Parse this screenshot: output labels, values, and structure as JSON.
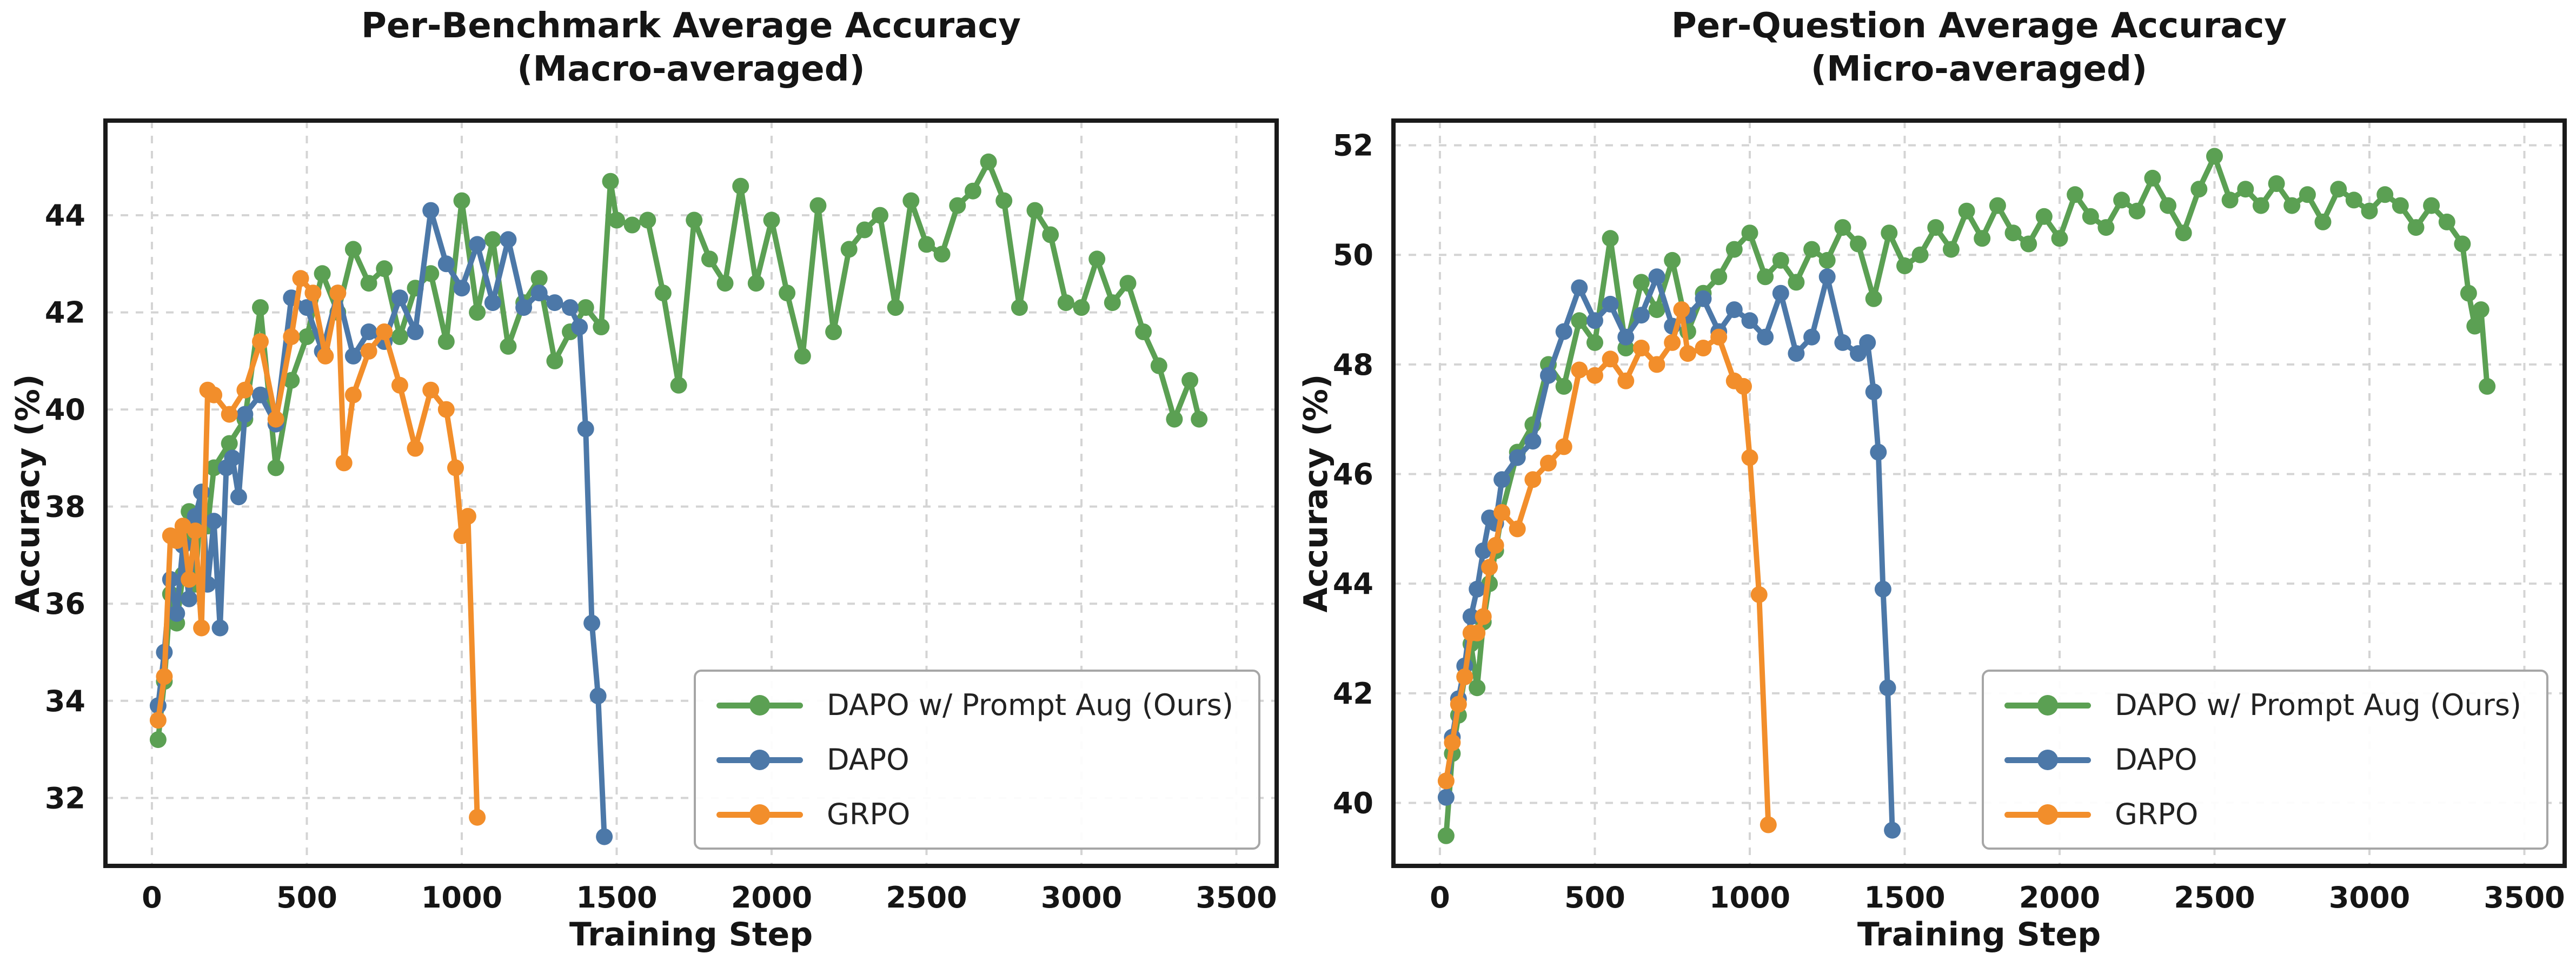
{
  "figure": {
    "background": "#ffffff"
  },
  "colors": {
    "green": "#5BA053",
    "blue": "#4C78A8",
    "orange": "#F28E2B",
    "grid": "#d4d4d4",
    "frame": "#1a1a1a",
    "text": "#151515",
    "legend_border": "#a6a6a6"
  },
  "legend": {
    "items": [
      {
        "label": "DAPO w/ Prompt Aug (Ours)",
        "color": "green"
      },
      {
        "label": "DAPO",
        "color": "blue"
      },
      {
        "label": "GRPO",
        "color": "orange"
      }
    ]
  },
  "chart_data": [
    {
      "type": "line",
      "title_line1": "Per-Benchmark Average Accuracy",
      "title_line2": "(Macro-averaged)",
      "xlabel": "Training Step",
      "ylabel": "Accuracy (%)",
      "xlim": [
        -150,
        3630
      ],
      "ylim": [
        30.6,
        45.95
      ],
      "xticks": [
        0,
        500,
        1000,
        1500,
        2000,
        2500,
        3000,
        3500
      ],
      "yticks": [
        32,
        34,
        36,
        38,
        40,
        42,
        44
      ],
      "grid": true,
      "legend_position": "lower right",
      "series": [
        {
          "name": "DAPO w/ Prompt Aug (Ours)",
          "color": "green",
          "x": [
            20,
            40,
            60,
            80,
            100,
            120,
            140,
            160,
            180,
            200,
            250,
            300,
            350,
            400,
            450,
            500,
            550,
            600,
            650,
            700,
            750,
            800,
            850,
            900,
            950,
            1000,
            1050,
            1100,
            1150,
            1200,
            1250,
            1300,
            1350,
            1400,
            1450,
            1480,
            1500,
            1550,
            1600,
            1650,
            1700,
            1750,
            1800,
            1850,
            1900,
            1950,
            2000,
            2050,
            2100,
            2150,
            2200,
            2250,
            2300,
            2350,
            2400,
            2450,
            2500,
            2550,
            2600,
            2650,
            2700,
            2750,
            2800,
            2850,
            2900,
            2950,
            3000,
            3050,
            3100,
            3150,
            3200,
            3250,
            3300,
            3350,
            3380
          ],
          "y": [
            33.2,
            34.4,
            36.2,
            35.6,
            36.6,
            37.9,
            36.4,
            38.3,
            37.6,
            38.8,
            39.3,
            39.8,
            42.1,
            38.8,
            40.6,
            41.5,
            42.8,
            42.0,
            43.3,
            42.6,
            42.9,
            41.5,
            42.5,
            42.8,
            41.4,
            44.3,
            42.0,
            43.5,
            41.3,
            42.2,
            42.7,
            41.0,
            41.6,
            42.1,
            41.7,
            44.7,
            43.9,
            43.8,
            43.9,
            42.4,
            40.5,
            43.9,
            43.1,
            42.6,
            44.6,
            42.6,
            43.9,
            42.4,
            41.1,
            44.2,
            41.6,
            43.3,
            43.7,
            44.0,
            42.1,
            44.3,
            43.4,
            43.2,
            44.2,
            44.5,
            45.1,
            44.3,
            42.1,
            44.1,
            43.6,
            42.2,
            42.1,
            43.1,
            42.2,
            42.6,
            41.6,
            40.9,
            39.8,
            40.6,
            39.8
          ]
        },
        {
          "name": "DAPO",
          "color": "blue",
          "x": [
            20,
            40,
            60,
            80,
            100,
            120,
            140,
            160,
            180,
            200,
            220,
            240,
            260,
            280,
            300,
            350,
            400,
            450,
            500,
            550,
            600,
            650,
            700,
            750,
            800,
            850,
            900,
            950,
            1000,
            1050,
            1100,
            1150,
            1200,
            1250,
            1300,
            1350,
            1380,
            1400,
            1420,
            1440,
            1460
          ],
          "y": [
            33.9,
            35.0,
            36.5,
            35.8,
            37.2,
            36.1,
            37.8,
            38.3,
            36.4,
            37.7,
            35.5,
            38.8,
            39.0,
            38.2,
            39.9,
            40.3,
            39.7,
            42.3,
            42.1,
            41.2,
            42.4,
            41.1,
            41.6,
            41.4,
            42.3,
            41.6,
            44.1,
            43.0,
            42.5,
            43.4,
            42.2,
            43.5,
            42.1,
            42.4,
            42.2,
            42.1,
            41.7,
            39.6,
            35.6,
            34.1,
            31.2
          ]
        },
        {
          "name": "GRPO",
          "color": "orange",
          "x": [
            20,
            40,
            60,
            80,
            100,
            120,
            140,
            160,
            180,
            200,
            250,
            300,
            350,
            400,
            450,
            480,
            520,
            560,
            600,
            620,
            650,
            700,
            750,
            800,
            850,
            900,
            950,
            980,
            1000,
            1020,
            1050
          ],
          "y": [
            33.6,
            34.5,
            37.4,
            37.3,
            37.6,
            36.5,
            37.5,
            35.5,
            40.4,
            40.3,
            39.9,
            40.4,
            41.4,
            39.8,
            41.5,
            42.7,
            42.4,
            41.1,
            42.4,
            38.9,
            40.3,
            41.2,
            41.6,
            40.5,
            39.2,
            40.4,
            40.0,
            38.8,
            37.4,
            37.8,
            31.6
          ]
        }
      ]
    },
    {
      "type": "line",
      "title_line1": "Per-Question Average Accuracy",
      "title_line2": "(Micro-averaged)",
      "xlabel": "Training Step",
      "ylabel": "Accuracy (%)",
      "xlim": [
        -150,
        3630
      ],
      "ylim": [
        38.85,
        52.45
      ],
      "xticks": [
        0,
        500,
        1000,
        1500,
        2000,
        2500,
        3000,
        3500
      ],
      "yticks": [
        40,
        42,
        44,
        46,
        48,
        50,
        52
      ],
      "grid": true,
      "legend_position": "lower right",
      "series": [
        {
          "name": "DAPO w/ Prompt Aug (Ours)",
          "color": "green",
          "x": [
            20,
            40,
            60,
            80,
            100,
            120,
            140,
            160,
            180,
            200,
            250,
            300,
            350,
            400,
            450,
            500,
            550,
            600,
            650,
            700,
            750,
            800,
            850,
            900,
            950,
            1000,
            1050,
            1100,
            1150,
            1200,
            1250,
            1300,
            1350,
            1400,
            1450,
            1500,
            1550,
            1600,
            1650,
            1700,
            1750,
            1800,
            1850,
            1900,
            1950,
            2000,
            2050,
            2100,
            2150,
            2200,
            2250,
            2300,
            2350,
            2400,
            2450,
            2500,
            2550,
            2600,
            2650,
            2700,
            2750,
            2800,
            2850,
            2900,
            2950,
            3000,
            3050,
            3100,
            3150,
            3200,
            3250,
            3300,
            3320,
            3340,
            3360,
            3380
          ],
          "y": [
            39.4,
            40.9,
            41.6,
            42.3,
            42.9,
            42.1,
            43.3,
            44.0,
            44.6,
            45.3,
            46.4,
            46.9,
            48.0,
            47.6,
            48.8,
            48.4,
            50.3,
            48.3,
            49.5,
            49.0,
            49.9,
            48.6,
            49.3,
            49.6,
            50.1,
            50.4,
            49.6,
            49.9,
            49.5,
            50.1,
            49.9,
            50.5,
            50.2,
            49.2,
            50.4,
            49.8,
            50.0,
            50.5,
            50.1,
            50.8,
            50.3,
            50.9,
            50.4,
            50.2,
            50.7,
            50.3,
            51.1,
            50.7,
            50.5,
            51.0,
            50.8,
            51.4,
            50.9,
            50.4,
            51.2,
            51.8,
            51.0,
            51.2,
            50.9,
            51.3,
            50.9,
            51.1,
            50.6,
            51.2,
            51.0,
            50.8,
            51.1,
            50.9,
            50.5,
            50.9,
            50.6,
            50.2,
            49.3,
            48.7,
            49.0,
            47.6
          ]
        },
        {
          "name": "DAPO",
          "color": "blue",
          "x": [
            20,
            40,
            60,
            80,
            100,
            120,
            140,
            160,
            180,
            200,
            250,
            300,
            350,
            400,
            450,
            500,
            550,
            600,
            650,
            700,
            750,
            800,
            850,
            900,
            950,
            1000,
            1050,
            1100,
            1150,
            1200,
            1250,
            1300,
            1350,
            1380,
            1400,
            1415,
            1430,
            1445,
            1460
          ],
          "y": [
            40.1,
            41.2,
            41.9,
            42.5,
            43.4,
            43.9,
            44.6,
            45.2,
            45.1,
            45.9,
            46.3,
            46.6,
            47.8,
            48.6,
            49.4,
            48.8,
            49.1,
            48.5,
            48.9,
            49.6,
            48.7,
            48.9,
            49.2,
            48.6,
            49.0,
            48.8,
            48.5,
            49.3,
            48.2,
            48.5,
            49.6,
            48.4,
            48.2,
            48.4,
            47.5,
            46.4,
            43.9,
            42.1,
            39.5
          ]
        },
        {
          "name": "GRPO",
          "color": "orange",
          "x": [
            20,
            40,
            60,
            80,
            100,
            120,
            140,
            160,
            180,
            200,
            250,
            300,
            350,
            400,
            450,
            500,
            550,
            600,
            650,
            700,
            750,
            780,
            800,
            850,
            900,
            950,
            980,
            1000,
            1030,
            1060
          ],
          "y": [
            40.4,
            41.1,
            41.8,
            42.3,
            43.1,
            43.1,
            43.4,
            44.3,
            44.7,
            45.3,
            45.0,
            45.9,
            46.2,
            46.5,
            47.9,
            47.8,
            48.1,
            47.7,
            48.3,
            48.0,
            48.4,
            49.0,
            48.2,
            48.3,
            48.5,
            47.7,
            47.6,
            46.3,
            43.8,
            39.6
          ]
        }
      ]
    }
  ]
}
